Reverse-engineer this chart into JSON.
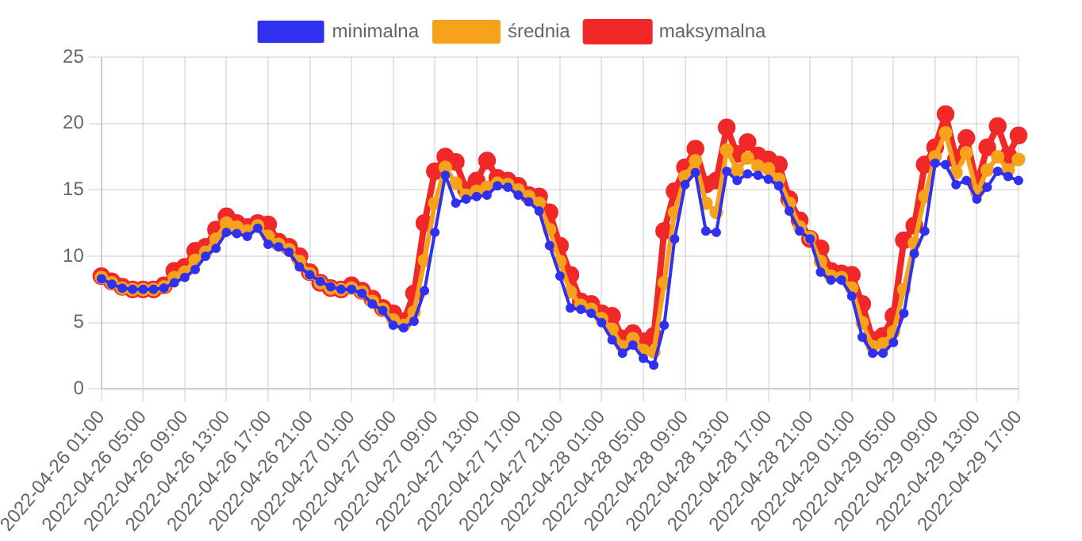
{
  "chart_data": {
    "type": "line",
    "categories": [
      "2022-04-26 01:00",
      null,
      null,
      null,
      "2022-04-26 05:00",
      null,
      null,
      null,
      "2022-04-26 09:00",
      null,
      null,
      null,
      "2022-04-26 13:00",
      null,
      null,
      null,
      "2022-04-26 17:00",
      null,
      null,
      null,
      "2022-04-26 21:00",
      null,
      null,
      null,
      "2022-04-27 01:00",
      null,
      null,
      null,
      "2022-04-27 05:00",
      null,
      null,
      null,
      "2022-04-27 09:00",
      null,
      null,
      null,
      "2022-04-27 13:00",
      null,
      null,
      null,
      "2022-04-27 17:00",
      null,
      null,
      null,
      "2022-04-27 21:00",
      null,
      null,
      null,
      "2022-04-28 01:00",
      null,
      null,
      null,
      "2022-04-28 05:00",
      null,
      null,
      null,
      "2022-04-28 09:00",
      null,
      null,
      null,
      "2022-04-28 13:00",
      null,
      null,
      null,
      "2022-04-28 17:00",
      null,
      null,
      null,
      "2022-04-28 21:00",
      null,
      null,
      null,
      "2022-04-29 01:00",
      null,
      null,
      null,
      "2022-04-29 05:00",
      null,
      null,
      null,
      "2022-04-29 09:00",
      null,
      null,
      null,
      "2022-04-29 13:00",
      null,
      null,
      null,
      "2022-04-29 17:00"
    ],
    "series": [
      {
        "name": "minimalna",
        "color": "#3030f0",
        "values": [
          8.3,
          7.9,
          7.6,
          7.5,
          7.5,
          7.5,
          7.6,
          8.0,
          8.4,
          9.0,
          10.0,
          10.6,
          11.8,
          11.7,
          11.5,
          12.1,
          10.9,
          10.7,
          10.3,
          9.2,
          8.6,
          8.1,
          7.7,
          7.5,
          7.5,
          7.2,
          6.4,
          5.9,
          4.8,
          4.6,
          5.1,
          7.4,
          11.8,
          16.1,
          14.0,
          14.3,
          14.5,
          14.6,
          15.3,
          15.2,
          14.6,
          14.1,
          13.4,
          10.8,
          8.5,
          6.1,
          6.0,
          5.7,
          5.0,
          3.7,
          2.7,
          3.3,
          2.3,
          1.8,
          4.8,
          11.3,
          15.4,
          16.3,
          11.9,
          11.8,
          16.4,
          15.7,
          16.2,
          16.1,
          15.8,
          15.3,
          13.4,
          11.9,
          11.3,
          8.8,
          8.2,
          8.2,
          7.0,
          3.9,
          2.7,
          2.7,
          3.5,
          5.7,
          10.2,
          11.9,
          17.0,
          16.9,
          15.4,
          15.7,
          14.3,
          15.2,
          16.4,
          16.0,
          15.7
        ]
      },
      {
        "name": "średnia",
        "color": "#f7a21b",
        "values": [
          8.4,
          8.0,
          7.6,
          7.5,
          7.5,
          7.5,
          7.7,
          8.4,
          8.8,
          9.7,
          10.3,
          11.3,
          12.5,
          12.2,
          11.9,
          12.3,
          11.5,
          10.9,
          10.5,
          9.6,
          8.7,
          8.0,
          7.6,
          7.5,
          7.6,
          7.3,
          6.6,
          6.0,
          5.2,
          4.8,
          5.8,
          9.7,
          14.0,
          16.7,
          15.5,
          14.6,
          14.9,
          15.2,
          15.5,
          15.4,
          15.0,
          14.5,
          14.0,
          12.0,
          9.6,
          7.3,
          6.3,
          6.0,
          5.3,
          4.5,
          3.2,
          3.8,
          2.9,
          2.8,
          8.0,
          13.3,
          16.0,
          17.2,
          14.0,
          13.3,
          18.0,
          16.5,
          17.4,
          16.8,
          16.6,
          15.8,
          14.0,
          12.2,
          11.4,
          9.6,
          8.5,
          8.4,
          7.6,
          5.0,
          3.2,
          3.4,
          4.3,
          7.5,
          11.0,
          14.5,
          17.5,
          19.3,
          16.3,
          17.8,
          14.8,
          16.5,
          17.5,
          16.5,
          17.3
        ]
      },
      {
        "name": "maksymalna",
        "color": "#f02828",
        "values": [
          8.5,
          8.1,
          7.7,
          7.5,
          7.5,
          7.5,
          7.8,
          8.9,
          9.2,
          10.4,
          10.7,
          12.0,
          13.0,
          12.5,
          12.2,
          12.5,
          12.4,
          11.1,
          10.7,
          10.0,
          8.8,
          8.0,
          7.6,
          7.5,
          7.8,
          7.4,
          6.8,
          6.1,
          5.7,
          5.1,
          7.2,
          12.5,
          16.4,
          17.5,
          17.1,
          15.0,
          15.7,
          17.2,
          15.9,
          15.7,
          15.3,
          14.6,
          14.5,
          13.3,
          10.8,
          8.6,
          6.6,
          6.4,
          5.7,
          5.5,
          3.8,
          4.2,
          3.6,
          4.0,
          11.9,
          14.9,
          16.7,
          18.1,
          15.4,
          15.7,
          19.7,
          17.7,
          18.6,
          17.6,
          17.3,
          16.9,
          14.3,
          12.7,
          11.3,
          10.6,
          8.9,
          8.7,
          8.6,
          6.4,
          3.7,
          4.0,
          5.5,
          11.2,
          12.3,
          16.9,
          18.2,
          20.7,
          17.3,
          18.9,
          15.4,
          18.2,
          19.8,
          17.6,
          19.1
        ]
      }
    ],
    "ylim": [
      0,
      25
    ],
    "yticks": [
      0,
      5,
      10,
      15,
      20,
      25
    ],
    "grid": true,
    "legend": "top",
    "marker": "circle",
    "line_style": "solid"
  }
}
